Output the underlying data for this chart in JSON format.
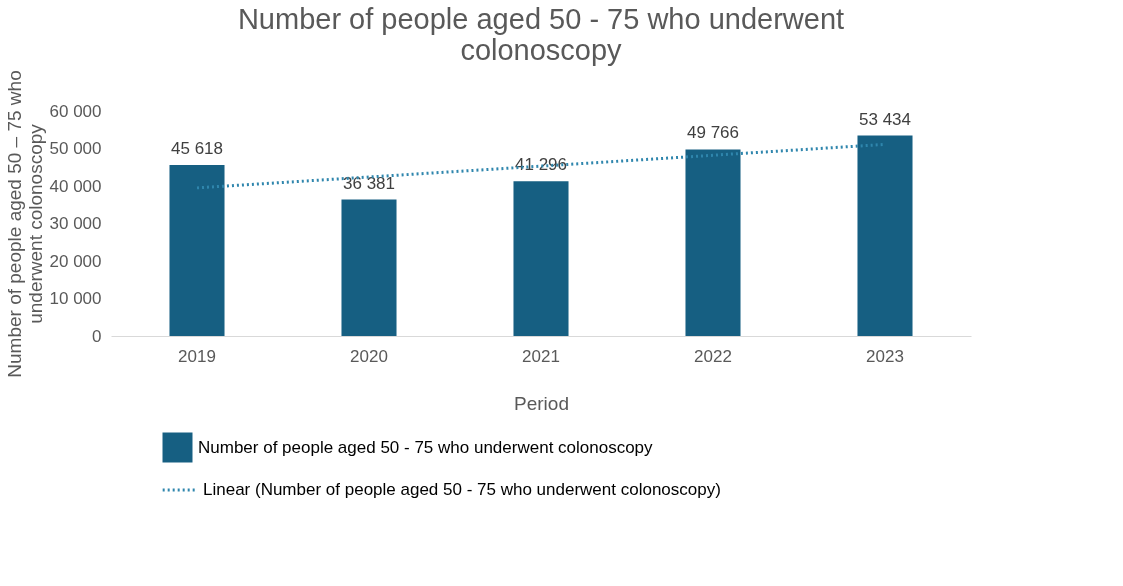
{
  "chart_data": {
    "type": "bar",
    "title": "Number of people aged 50 - 75 who underwent colonoscopy",
    "xlabel": "Period",
    "ylabel": "Number of people aged 50 – 75 who underwent colonoscopy",
    "categories": [
      "2019",
      "2020",
      "2021",
      "2022",
      "2023"
    ],
    "series": [
      {
        "name": "Number of people aged 50 - 75 who underwent colonoscopy",
        "color": "#165f82",
        "values": [
          45618,
          36381,
          41296,
          49766,
          53434
        ],
        "value_labels": [
          "45 618",
          "36 381",
          "41 296",
          "49 766",
          "53 434"
        ]
      },
      {
        "name": "Linear (Number of people aged 50 - 75 who underwent colonoscopy)",
        "type": "line",
        "line_style": "dotted",
        "color": "#2f86ad",
        "values": [
          39500,
          42400,
          45300,
          48200,
          51100
        ]
      }
    ],
    "ylim": [
      0,
      60000
    ],
    "yticks": [
      {
        "value": 0,
        "label": "0"
      },
      {
        "value": 10000,
        "label": "10 000"
      },
      {
        "value": 20000,
        "label": "20 000"
      },
      {
        "value": 30000,
        "label": "30 000"
      },
      {
        "value": 40000,
        "label": "40 000"
      },
      {
        "value": 50000,
        "label": "50 000"
      },
      {
        "value": 60000,
        "label": "60 000"
      }
    ],
    "grid": false,
    "legend": "bottom"
  }
}
